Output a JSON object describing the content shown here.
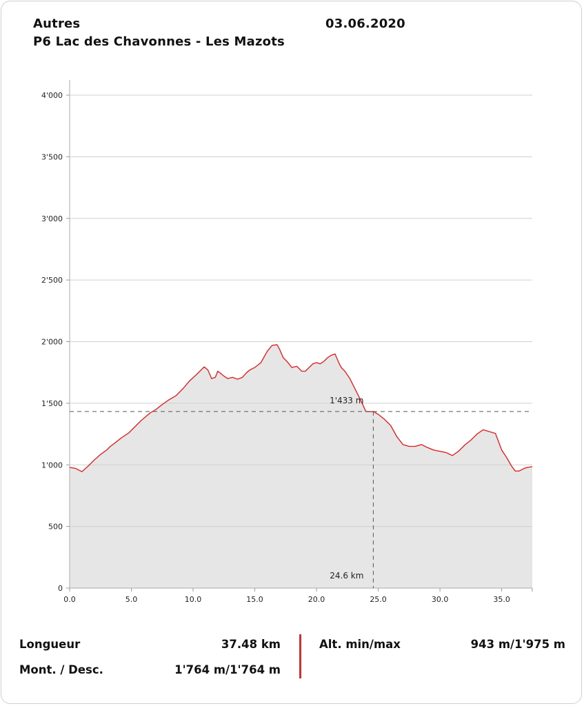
{
  "header": {
    "category": "Autres",
    "date": "03.06.2020",
    "route_name": "P6 Lac des Chavonnes - Les Mazots"
  },
  "stats": {
    "length_label": "Longueur",
    "length_value": "37.48 km",
    "ascent_descent_label": "Mont. / Desc.",
    "ascent_descent_value": "1'764 m/1'764 m",
    "alt_label": "Alt. min/max",
    "alt_value": "943 m/1'975 m"
  },
  "colors": {
    "profile_line": "#e02424",
    "profile_fill": "#e6e6e6",
    "separator": "#d32f2f"
  },
  "chart_data": {
    "type": "area",
    "title": "",
    "xlabel": "",
    "ylabel": "",
    "xlim": [
      0,
      37.48
    ],
    "ylim": [
      0,
      4000
    ],
    "x_ticks": [
      "0.0",
      "5.0",
      "10.0",
      "15.0",
      "20.0",
      "25.0",
      "30.0",
      "35.0"
    ],
    "y_ticks": [
      "0",
      "500",
      "1'000",
      "1'500",
      "2'000",
      "2'500",
      "3'000",
      "3'500",
      "4'000"
    ],
    "grid": "horizontal",
    "marker": {
      "x": 24.6,
      "y": 1433,
      "x_label": "24.6 km",
      "y_label": "1'433 m"
    },
    "series": [
      {
        "x": [
          0,
          0.5,
          1.0,
          1.5,
          2.0,
          2.5,
          3.0,
          3.3,
          3.7,
          4.2,
          4.8,
          5.3,
          5.8,
          6.5,
          7.0,
          7.5,
          8.0,
          8.6,
          9.2,
          9.7,
          10.3,
          10.9,
          11.2,
          11.5,
          11.8,
          12.0,
          12.2,
          12.5,
          12.8,
          13.2,
          13.6,
          14.0,
          14.3,
          14.6,
          15.0,
          15.5,
          16.0,
          16.4,
          16.8,
          17.0,
          17.3,
          17.6,
          18.0,
          18.4,
          18.8,
          19.1,
          19.4,
          19.7,
          20.0,
          20.3,
          20.6,
          20.9,
          21.2,
          21.5,
          21.8,
          22.0,
          22.3,
          22.7,
          23.1,
          23.6,
          24.0,
          24.6,
          25.0,
          25.5,
          26.0,
          26.5,
          27.0,
          27.5,
          28.0,
          28.5,
          29.0,
          29.5,
          30.0,
          30.5,
          31.0,
          31.5,
          32.0,
          32.5,
          33.0,
          33.5,
          34.0,
          34.5,
          35.0,
          35.4,
          35.8,
          36.1,
          36.4,
          36.8,
          37.1,
          37.48
        ],
        "y": [
          980,
          970,
          945,
          990,
          1040,
          1085,
          1120,
          1150,
          1180,
          1220,
          1260,
          1310,
          1360,
          1420,
          1450,
          1490,
          1525,
          1560,
          1620,
          1680,
          1735,
          1795,
          1770,
          1700,
          1710,
          1760,
          1745,
          1720,
          1700,
          1710,
          1695,
          1710,
          1745,
          1770,
          1790,
          1830,
          1920,
          1970,
          1975,
          1940,
          1870,
          1840,
          1790,
          1800,
          1760,
          1760,
          1790,
          1820,
          1830,
          1820,
          1840,
          1870,
          1890,
          1900,
          1830,
          1790,
          1760,
          1700,
          1620,
          1520,
          1433,
          1433,
          1410,
          1370,
          1320,
          1230,
          1165,
          1150,
          1150,
          1165,
          1140,
          1120,
          1110,
          1100,
          1075,
          1110,
          1160,
          1200,
          1250,
          1285,
          1270,
          1255,
          1120,
          1060,
          990,
          950,
          950,
          970,
          980,
          985
        ]
      }
    ]
  }
}
